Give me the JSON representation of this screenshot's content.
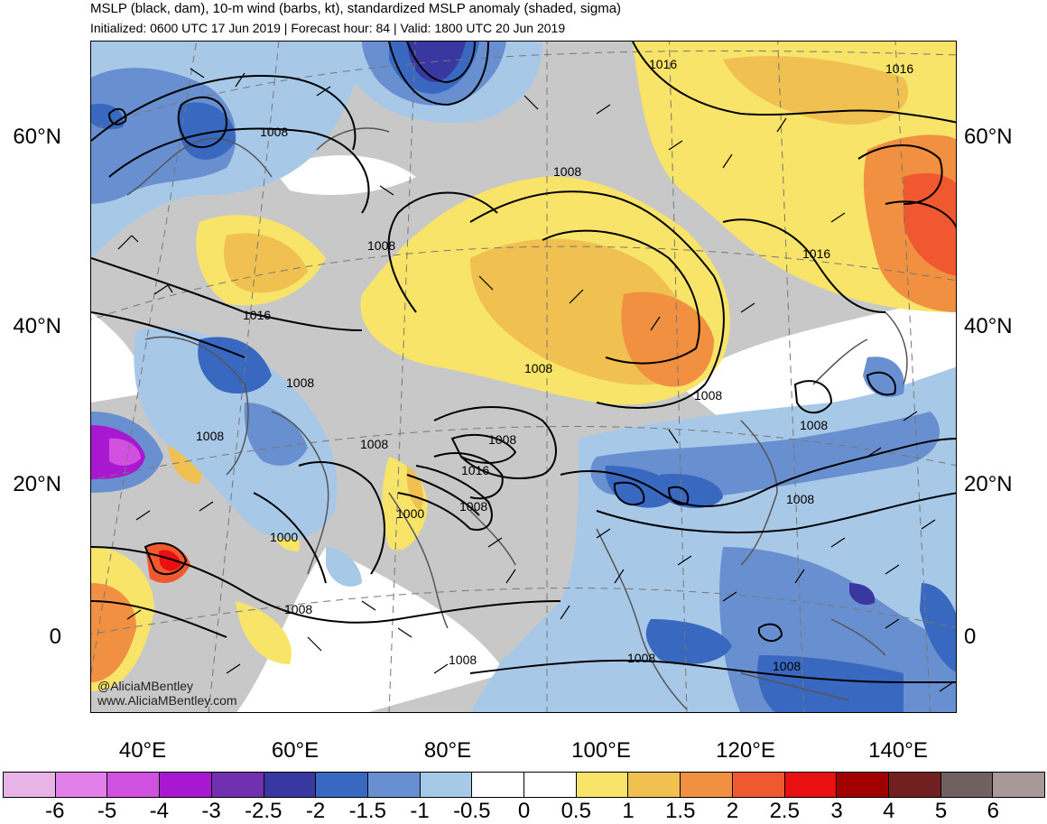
{
  "header": {
    "title": "MSLP (black, dam), 10-m wind (barbs, kt), standardized MSLP anomaly (shaded, sigma)",
    "subtitle": "Initialized: 0600 UTC 17 Jun 2019 | Forecast hour: 84 | Valid: 1800 UTC 20 Jun 2019"
  },
  "map": {
    "lat_labels": [
      "60°N",
      "40°N",
      "20°N",
      "0"
    ],
    "lon_labels": [
      "40°E",
      "60°E",
      "80°E",
      "100°E",
      "120°E",
      "140°E"
    ],
    "isobar_labels": [
      "1016",
      "1016",
      "1008",
      "1008",
      "1008",
      "1016",
      "1016",
      "1008",
      "1008",
      "1008",
      "1008",
      "1008",
      "1008",
      "1016",
      "1008",
      "1000",
      "1000",
      "1008",
      "1008",
      "1008",
      "1008",
      "1008",
      "1008"
    ],
    "credit_lines": [
      "@AliciaMBentley",
      "www.AliciaMBentley.com"
    ]
  },
  "colorbar": {
    "colors": [
      "#e8b4e8",
      "#e080e8",
      "#d050e0",
      "#a818d0",
      "#7030b0",
      "#3838a0",
      "#3868c0",
      "#6890d0",
      "#a8c8e8",
      "#ffffff",
      "#ffffff",
      "#f8e468",
      "#f0c050",
      "#f09040",
      "#f05830",
      "#e81010",
      "#a00000",
      "#702020",
      "#706060",
      "#a89898"
    ],
    "labels": [
      "-6",
      "-5",
      "-4",
      "-3",
      "-2.5",
      "-2",
      "-1.5",
      "-1",
      "-0.5",
      "0",
      "0.5",
      "1",
      "1.5",
      "2",
      "2.5",
      "3",
      "4",
      "5",
      "6"
    ]
  },
  "colors": {
    "gray": "#c8c8c8",
    "white": "#ffffff",
    "yellow": "#f8e468",
    "light_orange": "#f0c050",
    "orange": "#f09040",
    "red_orange": "#f05830",
    "red": "#e81010",
    "light_blue": "#a8c8e8",
    "med_blue": "#6890d0",
    "blue": "#3868c0",
    "dark_blue": "#3838a0",
    "indigo": "#7030b0",
    "purple": "#a818d0",
    "coastline": "#555555",
    "isobar": "#000000"
  }
}
